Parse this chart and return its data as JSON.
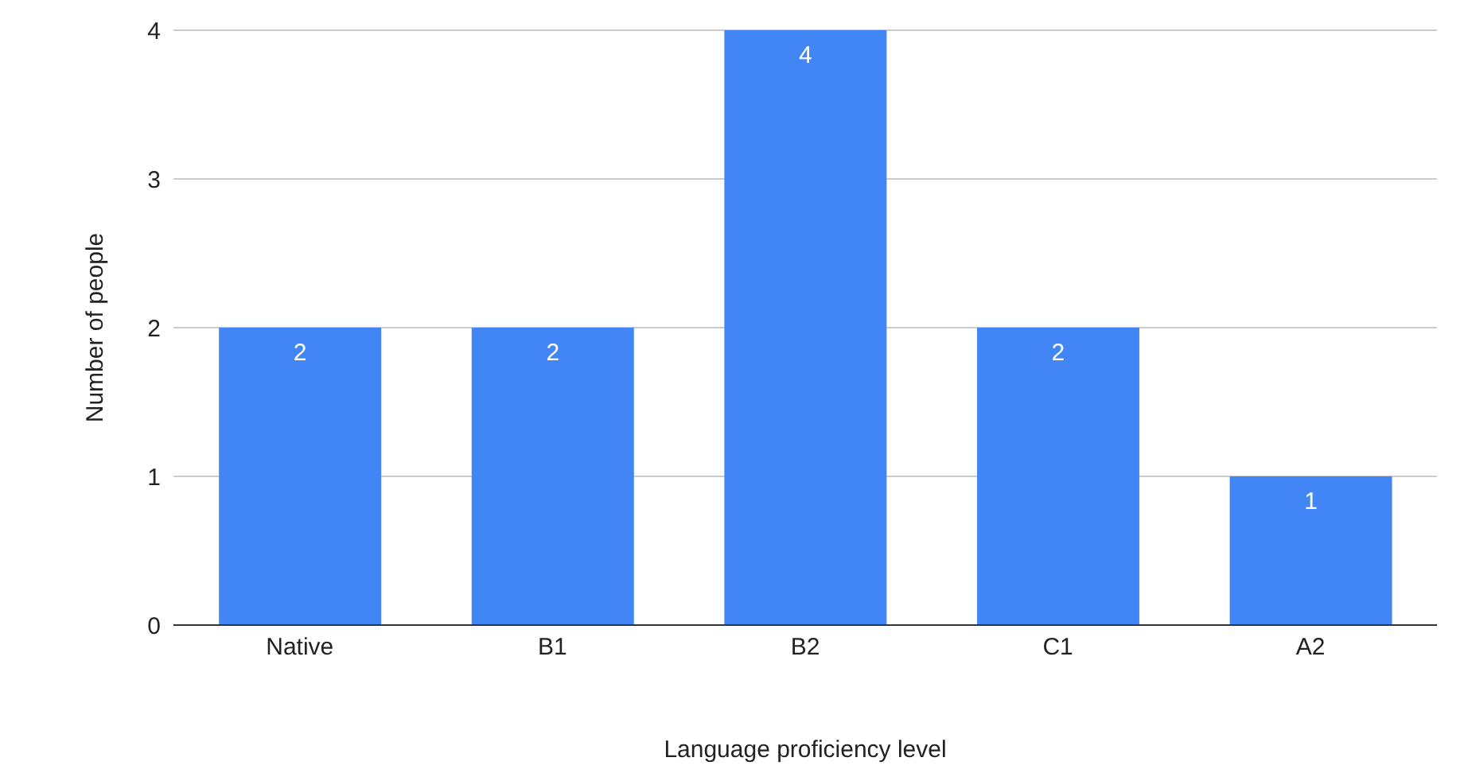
{
  "chart_data": {
    "type": "bar",
    "xlabel": "Language proficiency level",
    "ylabel": "Number of people",
    "categories": [
      "Native",
      "B1",
      "B2",
      "C1",
      "A2"
    ],
    "values": [
      2,
      2,
      4,
      2,
      1
    ],
    "color": "#4285f4",
    "ylim": [
      0,
      4
    ],
    "yticks": [
      0,
      1,
      2,
      3,
      4
    ],
    "grid": "y",
    "data_labels": true,
    "legend": false
  }
}
